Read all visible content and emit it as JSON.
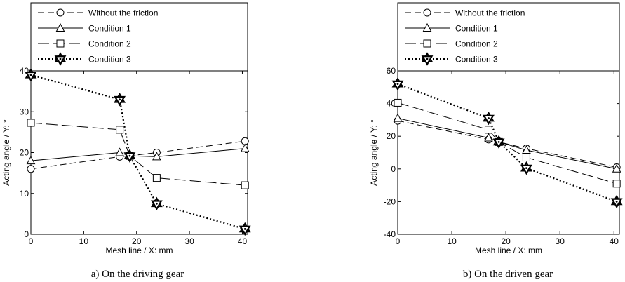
{
  "chart_data": [
    {
      "type": "line",
      "caption": "a) On the driving gear",
      "xlabel": "Mesh line / X: mm",
      "ylabel": "Acting angle / Y: °",
      "xlim": [
        0,
        41
      ],
      "ylim": [
        0,
        40
      ],
      "xticks": [
        "0",
        "10",
        "20",
        "30",
        "40"
      ],
      "yticks": [
        "0",
        "10",
        "20",
        "30",
        "40"
      ],
      "grid": false,
      "legend_position": "top",
      "x": [
        0,
        16.8,
        18.7,
        23.8,
        40.5
      ],
      "series": [
        {
          "name": "Without the friction",
          "marker": "circle",
          "line": "dash",
          "values": [
            16,
            19,
            19.2,
            20,
            22.8
          ]
        },
        {
          "name": "Condition 1",
          "marker": "triangle",
          "line": "solid",
          "values": [
            18,
            20,
            19.2,
            19,
            21
          ]
        },
        {
          "name": "Condition 2",
          "marker": "square",
          "line": "longdash",
          "values": [
            27.3,
            25.6,
            19.2,
            13.8,
            12
          ]
        },
        {
          "name": "Condition 3",
          "marker": "star",
          "line": "dotted",
          "values": [
            39,
            33,
            19.2,
            7.5,
            1.3
          ]
        }
      ]
    },
    {
      "type": "line",
      "caption": "b) On the driven gear",
      "xlabel": "Mesh line / X: mm",
      "ylabel": "Acting angle / Y: °",
      "xlim": [
        0,
        41
      ],
      "ylim": [
        -40,
        60
      ],
      "xticks": [
        "0",
        "10",
        "20",
        "30",
        "40"
      ],
      "yticks": [
        "-40",
        "-20",
        "0",
        "20",
        "40",
        "60"
      ],
      "grid": false,
      "legend_position": "top",
      "x": [
        0,
        16.8,
        18.7,
        23.8,
        40.5
      ],
      "series": [
        {
          "name": "Without the friction",
          "marker": "circle",
          "line": "dash",
          "values": [
            29.5,
            18,
            16.5,
            12.5,
            1
          ]
        },
        {
          "name": "Condition 1",
          "marker": "triangle",
          "line": "solid",
          "values": [
            31,
            19,
            16.5,
            11.5,
            0
          ]
        },
        {
          "name": "Condition 2",
          "marker": "square",
          "line": "longdash",
          "values": [
            40.5,
            24,
            16.5,
            7,
            -9
          ]
        },
        {
          "name": "Condition 3",
          "marker": "star",
          "line": "dotted",
          "values": [
            52,
            31,
            16.5,
            0.5,
            -20
          ]
        }
      ]
    }
  ]
}
